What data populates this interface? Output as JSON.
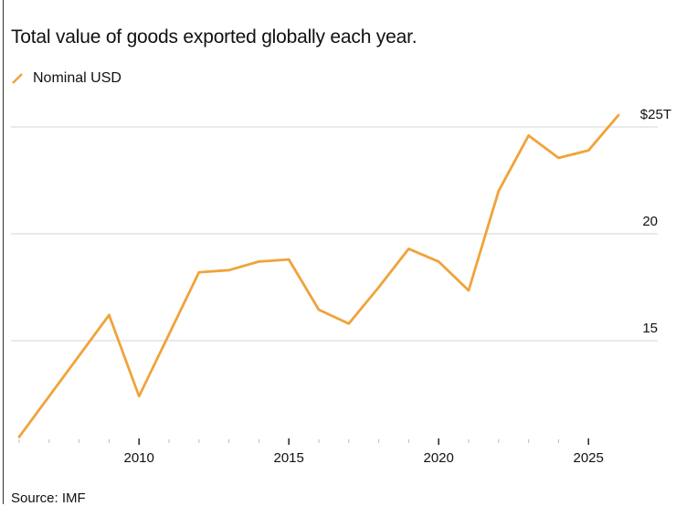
{
  "chart_data": {
    "type": "line",
    "title": "Total value of goods exported globally each year.",
    "xlabel": "",
    "ylabel": "",
    "x": [
      2006,
      2007,
      2008,
      2009,
      2010,
      2011,
      2012,
      2013,
      2014,
      2015,
      2016,
      2017,
      2018,
      2019,
      2020,
      2021,
      2022,
      2023,
      2024,
      2025,
      2026
    ],
    "series": [
      {
        "name": "Nominal USD",
        "color": "#f0a33a",
        "values": [
          10.5,
          12.4,
          14.3,
          16.2,
          12.4,
          15.3,
          18.2,
          18.3,
          18.7,
          18.8,
          16.45,
          15.8,
          17.5,
          19.3,
          18.7,
          17.35,
          22.0,
          24.6,
          23.55,
          23.9,
          25.55
        ]
      }
    ],
    "xlim": [
      2006,
      2026
    ],
    "ylim": [
      10.45,
      25
    ],
    "x_ticks": [
      {
        "value": 2010,
        "label": "2010"
      },
      {
        "value": 2015,
        "label": "2015"
      },
      {
        "value": 2020,
        "label": "2020"
      },
      {
        "value": 2025,
        "label": "2025"
      }
    ],
    "y_ticks": [
      {
        "value": 25,
        "label": "$25T"
      },
      {
        "value": 20,
        "label": "20"
      },
      {
        "value": 15,
        "label": "15"
      }
    ],
    "grid": true,
    "legend_placement": "top-left",
    "source": "Source: IMF"
  }
}
